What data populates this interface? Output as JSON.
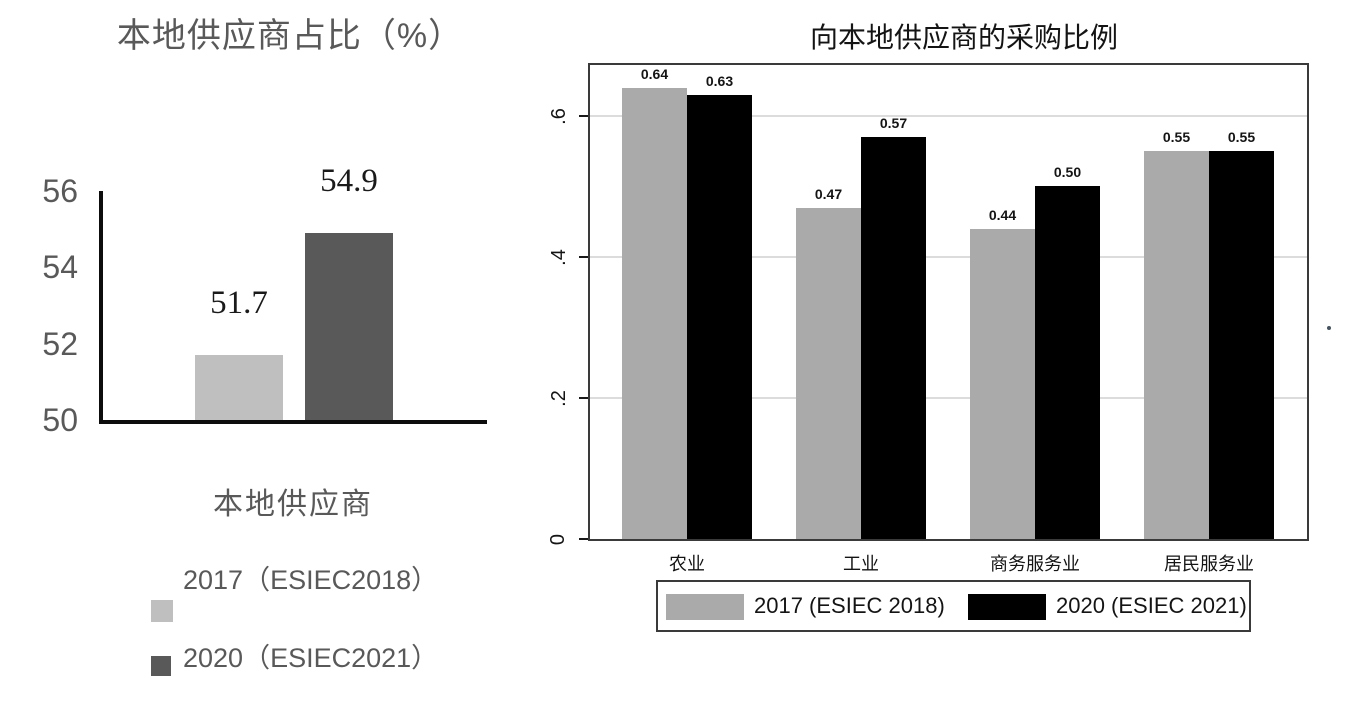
{
  "chart_data": [
    {
      "type": "bar",
      "title": "本地供应商占比（%）",
      "categories": [
        "本地供应商"
      ],
      "series": [
        {
          "name": "2017（ESIEC2018）",
          "values": [
            51.7
          ],
          "color": "#bfbfbf"
        },
        {
          "name": "2020（ESIEC2021）",
          "values": [
            54.9
          ],
          "color": "#595959"
        }
      ],
      "data_labels": [
        "51.7",
        "54.9"
      ],
      "xlabel": "本地供应商",
      "ylabel": "",
      "ylim": [
        50,
        56
      ],
      "yticks": [
        50,
        52,
        54,
        56
      ],
      "grid": false,
      "legend_position": "bottom-left",
      "text_color": "#595959",
      "value_label_color": "#1a1a1a"
    },
    {
      "type": "bar",
      "title": "向本地供应商的采购比例",
      "categories": [
        "农业",
        "工业",
        "商务服务业",
        "居民服务业"
      ],
      "series": [
        {
          "name": "2017 (ESIEC 2018)",
          "values": [
            0.64,
            0.47,
            0.44,
            0.55
          ],
          "color": "#aaaaaa"
        },
        {
          "name": "2020 (ESIEC 2021)",
          "values": [
            0.63,
            0.57,
            0.5,
            0.55
          ],
          "color": "#000000"
        }
      ],
      "data_labels": [
        "0.64",
        "0.63",
        "0.47",
        "0.57",
        "0.44",
        "0.50",
        "0.55",
        "0.55"
      ],
      "xlabel": "",
      "ylabel": "",
      "ylim": [
        0,
        0.675
      ],
      "yticks": [
        0,
        0.2,
        0.4,
        0.6
      ],
      "ytick_labels": [
        "0",
        ".2",
        ".4",
        ".6"
      ],
      "grid": true,
      "gridline_color": "#dcdcdc",
      "legend_position": "bottom",
      "plot_border": true
    }
  ]
}
